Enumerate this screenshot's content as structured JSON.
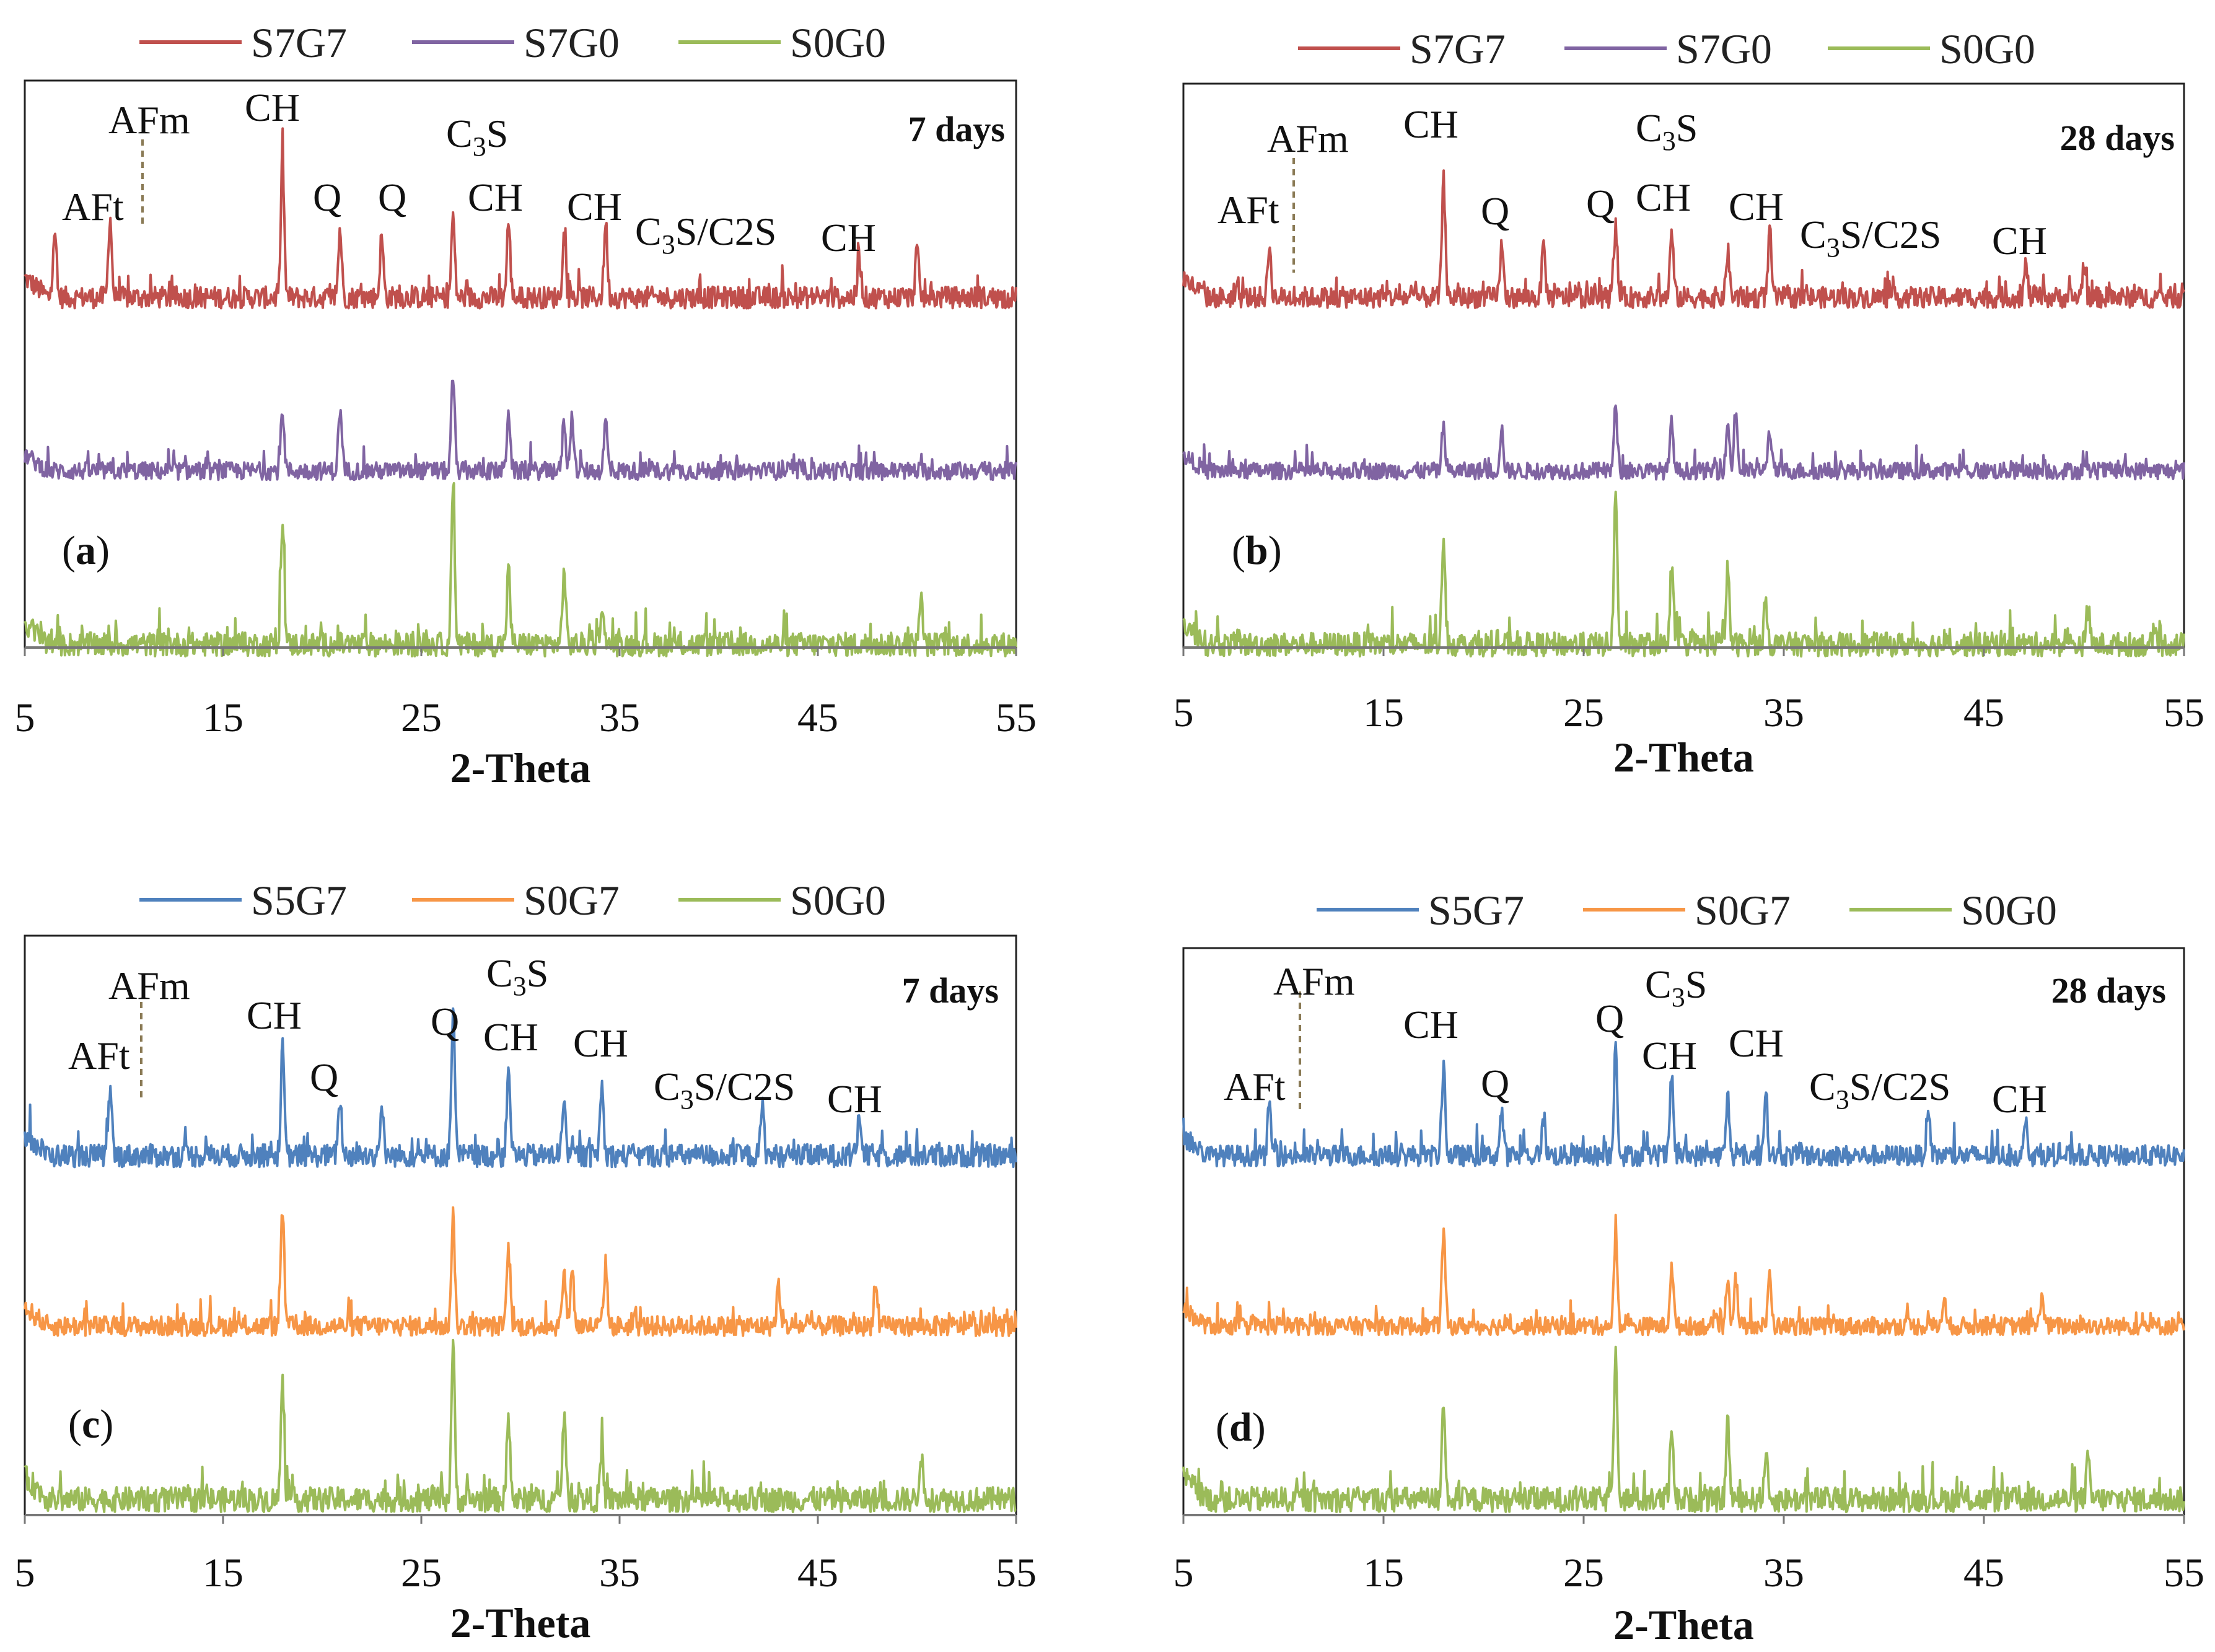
{
  "chart_data": [
    {
      "type": "line",
      "panel_label": "a",
      "age_label": "7 days",
      "xlabel": "2-Theta",
      "ylabel": "",
      "xlim": [
        5,
        55
      ],
      "xticks": [
        "5",
        "15",
        "25",
        "35",
        "45",
        "55"
      ],
      "legend": [
        "S7G7",
        "S7G0",
        "S0G0"
      ],
      "series": [
        {
          "name": "S7G7",
          "color": "#c0504d",
          "peaks": [
            [
              6.5,
              0.5
            ],
            [
              9.3,
              0.6
            ],
            [
              18.0,
              1.0
            ],
            [
              20.9,
              0.5
            ],
            [
              23.0,
              0.45
            ],
            [
              26.6,
              0.6
            ],
            [
              29.4,
              0.55
            ],
            [
              32.2,
              0.45
            ],
            [
              34.3,
              0.55
            ],
            [
              47.1,
              0.3
            ],
            [
              50.0,
              0.35
            ]
          ]
        },
        {
          "name": "S7G0",
          "color": "#8064a2",
          "peaks": [
            [
              18.0,
              0.55
            ],
            [
              20.9,
              0.55
            ],
            [
              26.6,
              0.85
            ],
            [
              29.4,
              0.55
            ],
            [
              32.2,
              0.45
            ],
            [
              32.6,
              0.5
            ],
            [
              34.3,
              0.45
            ]
          ]
        },
        {
          "name": "S0G0",
          "color": "#9bbb59",
          "peaks": [
            [
              18.0,
              0.85
            ],
            [
              26.6,
              1.0
            ],
            [
              29.4,
              0.5
            ],
            [
              32.2,
              0.5
            ],
            [
              34.1,
              0.25
            ],
            [
              50.2,
              0.3
            ]
          ]
        }
      ],
      "annotations": [
        {
          "text": "AFt"
        },
        {
          "text": "AFm"
        },
        {
          "text": "CH"
        },
        {
          "text": "Q"
        },
        {
          "text": "C3S",
          "base": "C",
          "sub": "3",
          "tail": "S"
        },
        {
          "text": "Q"
        },
        {
          "text": "CH"
        },
        {
          "text": "CH"
        },
        {
          "text": "C3S/C2S",
          "base": "C",
          "sub": "3",
          "tail": "S/C2S"
        },
        {
          "text": "CH"
        }
      ]
    },
    {
      "type": "line",
      "panel_label": "b",
      "age_label": "28 days",
      "xlabel": "2-Theta",
      "ylabel": "",
      "xlim": [
        5,
        55
      ],
      "xticks": [
        "5",
        "15",
        "25",
        "35",
        "45",
        "55"
      ],
      "legend": [
        "S7G7",
        "S7G0",
        "S0G0"
      ],
      "series": [
        {
          "name": "S7G7",
          "color": "#c0504d",
          "peaks": [
            [
              9.3,
              0.4
            ],
            [
              18.0,
              0.9
            ],
            [
              20.9,
              0.4
            ],
            [
              23.0,
              0.4
            ],
            [
              26.6,
              0.55
            ],
            [
              29.4,
              0.5
            ],
            [
              32.2,
              0.35
            ],
            [
              34.3,
              0.5
            ],
            [
              47.1,
              0.25
            ],
            [
              50.0,
              0.25
            ]
          ]
        },
        {
          "name": "S7G0",
          "color": "#8064a2",
          "peaks": [
            [
              18.0,
              0.4
            ],
            [
              20.9,
              0.4
            ],
            [
              26.6,
              0.6
            ],
            [
              29.4,
              0.45
            ],
            [
              32.2,
              0.45
            ],
            [
              32.6,
              0.55
            ],
            [
              34.3,
              0.4
            ]
          ]
        },
        {
          "name": "S0G0",
          "color": "#9bbb59",
          "peaks": [
            [
              18.0,
              0.75
            ],
            [
              26.6,
              1.0
            ],
            [
              29.4,
              0.55
            ],
            [
              32.2,
              0.5
            ],
            [
              34.1,
              0.3
            ],
            [
              50.2,
              0.25
            ]
          ]
        }
      ],
      "annotations": [
        {
          "text": "AFt"
        },
        {
          "text": "AFm"
        },
        {
          "text": "CH"
        },
        {
          "text": "Q"
        },
        {
          "text": "C3S",
          "base": "C",
          "sub": "3",
          "tail": "S"
        },
        {
          "text": "Q"
        },
        {
          "text": "CH"
        },
        {
          "text": "CH"
        },
        {
          "text": "C3S/C2S",
          "base": "C",
          "sub": "3",
          "tail": "S/C2S"
        },
        {
          "text": "CH"
        }
      ]
    },
    {
      "type": "line",
      "panel_label": "c",
      "age_label": "7 days",
      "xlabel": "2-Theta",
      "ylabel": "",
      "xlim": [
        5,
        55
      ],
      "xticks": [
        "5",
        "15",
        "25",
        "35",
        "45",
        "55"
      ],
      "legend": [
        "S5G7",
        "S0G7",
        "S0G0"
      ],
      "series": [
        {
          "name": "S5G7",
          "color": "#4f81bd",
          "peaks": [
            [
              9.3,
              0.45
            ],
            [
              18.0,
              0.75
            ],
            [
              20.9,
              0.4
            ],
            [
              23.0,
              0.35
            ],
            [
              26.6,
              1.0
            ],
            [
              29.4,
              0.65
            ],
            [
              32.2,
              0.45
            ],
            [
              34.1,
              0.5
            ],
            [
              42.2,
              0.35
            ],
            [
              47.1,
              0.3
            ]
          ]
        },
        {
          "name": "S0G7",
          "color": "#f79646",
          "peaks": [
            [
              18.0,
              0.95
            ],
            [
              26.6,
              0.9
            ],
            [
              29.4,
              0.6
            ],
            [
              32.2,
              0.45
            ],
            [
              32.6,
              0.5
            ],
            [
              34.3,
              0.5
            ],
            [
              43.0,
              0.3
            ],
            [
              47.9,
              0.35
            ]
          ]
        },
        {
          "name": "S0G0",
          "color": "#9bbb59",
          "peaks": [
            [
              18.0,
              0.75
            ],
            [
              26.6,
              1.0
            ],
            [
              29.4,
              0.5
            ],
            [
              32.2,
              0.55
            ],
            [
              34.1,
              0.3
            ],
            [
              50.2,
              0.3
            ]
          ]
        }
      ],
      "annotations": [
        {
          "text": "AFt"
        },
        {
          "text": "AFm"
        },
        {
          "text": "CH"
        },
        {
          "text": "Q"
        },
        {
          "text": "Q"
        },
        {
          "text": "C3S",
          "base": "C",
          "sub": "3",
          "tail": "S"
        },
        {
          "text": "CH"
        },
        {
          "text": "CH"
        },
        {
          "text": "C3S/C2S",
          "base": "C",
          "sub": "3",
          "tail": "S/C2S"
        },
        {
          "text": "CH"
        }
      ]
    },
    {
      "type": "line",
      "panel_label": "d",
      "age_label": "28 days",
      "xlabel": "2-Theta",
      "ylabel": "",
      "xlim": [
        5,
        55
      ],
      "xticks": [
        "5",
        "15",
        "25",
        "35",
        "45",
        "55"
      ],
      "legend": [
        "S5G7",
        "S0G7",
        "S0G0"
      ],
      "series": [
        {
          "name": "S5G7",
          "color": "#4f81bd",
          "peaks": [
            [
              9.3,
              0.4
            ],
            [
              18.0,
              0.7
            ],
            [
              20.9,
              0.35
            ],
            [
              23.0,
              0.3
            ],
            [
              26.6,
              0.85
            ],
            [
              29.4,
              0.6
            ],
            [
              32.2,
              0.45
            ],
            [
              34.1,
              0.5
            ],
            [
              42.2,
              0.3
            ],
            [
              47.1,
              0.25
            ]
          ]
        },
        {
          "name": "S0G7",
          "color": "#f79646",
          "peaks": [
            [
              18.0,
              0.85
            ],
            [
              26.6,
              0.8
            ],
            [
              29.4,
              0.55
            ],
            [
              32.2,
              0.45
            ],
            [
              32.6,
              0.45
            ],
            [
              34.3,
              0.45
            ],
            [
              43.0,
              0.25
            ],
            [
              47.9,
              0.3
            ]
          ]
        },
        {
          "name": "S0G0",
          "color": "#9bbb59",
          "peaks": [
            [
              18.0,
              0.65
            ],
            [
              26.6,
              1.0
            ],
            [
              29.4,
              0.5
            ],
            [
              32.2,
              0.5
            ],
            [
              34.1,
              0.3
            ],
            [
              50.2,
              0.25
            ]
          ]
        }
      ],
      "annotations": [
        {
          "text": "AFt"
        },
        {
          "text": "AFm"
        },
        {
          "text": "CH"
        },
        {
          "text": "Q"
        },
        {
          "text": "Q"
        },
        {
          "text": "C3S",
          "base": "C",
          "sub": "3",
          "tail": "S"
        },
        {
          "text": "CH"
        },
        {
          "text": "CH"
        },
        {
          "text": "C3S/C2S",
          "base": "C",
          "sub": "3",
          "tail": "S/C2S"
        },
        {
          "text": "CH"
        }
      ]
    }
  ]
}
